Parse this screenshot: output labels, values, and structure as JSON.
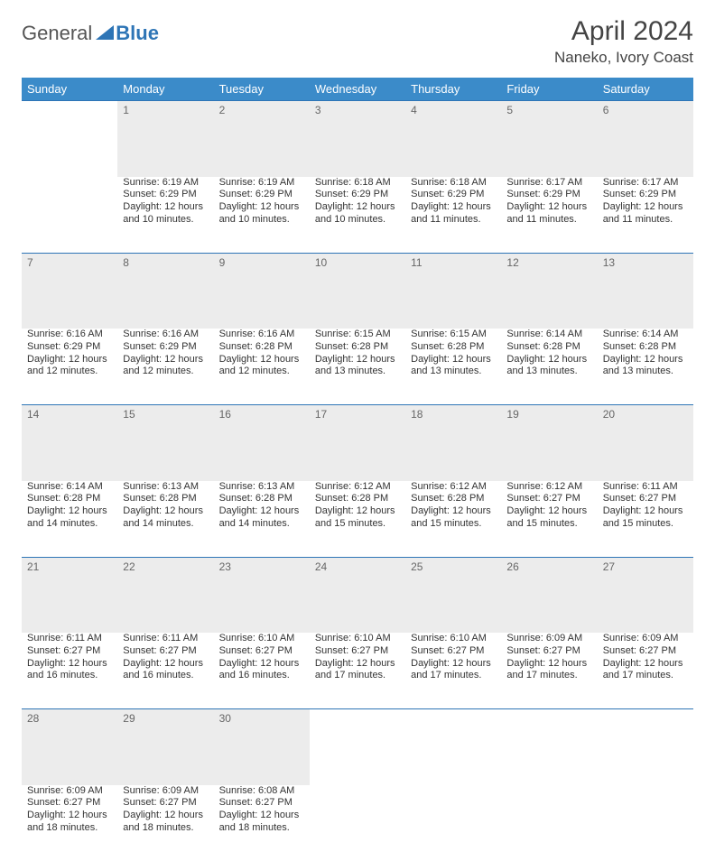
{
  "logo": {
    "word1": "General",
    "word2": "Blue",
    "blue_color": "#2e75b6"
  },
  "title": "April 2024",
  "location": "Naneko, Ivory Coast",
  "colors": {
    "header_bg": "#3b8bc9",
    "daynum_bg": "#ececec",
    "divider": "#2e75b6",
    "text": "#333333",
    "title": "#444444"
  },
  "weekdays": [
    "Sunday",
    "Monday",
    "Tuesday",
    "Wednesday",
    "Thursday",
    "Friday",
    "Saturday"
  ],
  "weeks": [
    {
      "days": [
        {
          "n": "",
          "sunrise": "",
          "sunset": "",
          "day1": "",
          "day2": ""
        },
        {
          "n": "1",
          "sunrise": "Sunrise: 6:19 AM",
          "sunset": "Sunset: 6:29 PM",
          "day1": "Daylight: 12 hours",
          "day2": "and 10 minutes."
        },
        {
          "n": "2",
          "sunrise": "Sunrise: 6:19 AM",
          "sunset": "Sunset: 6:29 PM",
          "day1": "Daylight: 12 hours",
          "day2": "and 10 minutes."
        },
        {
          "n": "3",
          "sunrise": "Sunrise: 6:18 AM",
          "sunset": "Sunset: 6:29 PM",
          "day1": "Daylight: 12 hours",
          "day2": "and 10 minutes."
        },
        {
          "n": "4",
          "sunrise": "Sunrise: 6:18 AM",
          "sunset": "Sunset: 6:29 PM",
          "day1": "Daylight: 12 hours",
          "day2": "and 11 minutes."
        },
        {
          "n": "5",
          "sunrise": "Sunrise: 6:17 AM",
          "sunset": "Sunset: 6:29 PM",
          "day1": "Daylight: 12 hours",
          "day2": "and 11 minutes."
        },
        {
          "n": "6",
          "sunrise": "Sunrise: 6:17 AM",
          "sunset": "Sunset: 6:29 PM",
          "day1": "Daylight: 12 hours",
          "day2": "and 11 minutes."
        }
      ]
    },
    {
      "days": [
        {
          "n": "7",
          "sunrise": "Sunrise: 6:16 AM",
          "sunset": "Sunset: 6:29 PM",
          "day1": "Daylight: 12 hours",
          "day2": "and 12 minutes."
        },
        {
          "n": "8",
          "sunrise": "Sunrise: 6:16 AM",
          "sunset": "Sunset: 6:29 PM",
          "day1": "Daylight: 12 hours",
          "day2": "and 12 minutes."
        },
        {
          "n": "9",
          "sunrise": "Sunrise: 6:16 AM",
          "sunset": "Sunset: 6:28 PM",
          "day1": "Daylight: 12 hours",
          "day2": "and 12 minutes."
        },
        {
          "n": "10",
          "sunrise": "Sunrise: 6:15 AM",
          "sunset": "Sunset: 6:28 PM",
          "day1": "Daylight: 12 hours",
          "day2": "and 13 minutes."
        },
        {
          "n": "11",
          "sunrise": "Sunrise: 6:15 AM",
          "sunset": "Sunset: 6:28 PM",
          "day1": "Daylight: 12 hours",
          "day2": "and 13 minutes."
        },
        {
          "n": "12",
          "sunrise": "Sunrise: 6:14 AM",
          "sunset": "Sunset: 6:28 PM",
          "day1": "Daylight: 12 hours",
          "day2": "and 13 minutes."
        },
        {
          "n": "13",
          "sunrise": "Sunrise: 6:14 AM",
          "sunset": "Sunset: 6:28 PM",
          "day1": "Daylight: 12 hours",
          "day2": "and 13 minutes."
        }
      ]
    },
    {
      "days": [
        {
          "n": "14",
          "sunrise": "Sunrise: 6:14 AM",
          "sunset": "Sunset: 6:28 PM",
          "day1": "Daylight: 12 hours",
          "day2": "and 14 minutes."
        },
        {
          "n": "15",
          "sunrise": "Sunrise: 6:13 AM",
          "sunset": "Sunset: 6:28 PM",
          "day1": "Daylight: 12 hours",
          "day2": "and 14 minutes."
        },
        {
          "n": "16",
          "sunrise": "Sunrise: 6:13 AM",
          "sunset": "Sunset: 6:28 PM",
          "day1": "Daylight: 12 hours",
          "day2": "and 14 minutes."
        },
        {
          "n": "17",
          "sunrise": "Sunrise: 6:12 AM",
          "sunset": "Sunset: 6:28 PM",
          "day1": "Daylight: 12 hours",
          "day2": "and 15 minutes."
        },
        {
          "n": "18",
          "sunrise": "Sunrise: 6:12 AM",
          "sunset": "Sunset: 6:28 PM",
          "day1": "Daylight: 12 hours",
          "day2": "and 15 minutes."
        },
        {
          "n": "19",
          "sunrise": "Sunrise: 6:12 AM",
          "sunset": "Sunset: 6:27 PM",
          "day1": "Daylight: 12 hours",
          "day2": "and 15 minutes."
        },
        {
          "n": "20",
          "sunrise": "Sunrise: 6:11 AM",
          "sunset": "Sunset: 6:27 PM",
          "day1": "Daylight: 12 hours",
          "day2": "and 15 minutes."
        }
      ]
    },
    {
      "days": [
        {
          "n": "21",
          "sunrise": "Sunrise: 6:11 AM",
          "sunset": "Sunset: 6:27 PM",
          "day1": "Daylight: 12 hours",
          "day2": "and 16 minutes."
        },
        {
          "n": "22",
          "sunrise": "Sunrise: 6:11 AM",
          "sunset": "Sunset: 6:27 PM",
          "day1": "Daylight: 12 hours",
          "day2": "and 16 minutes."
        },
        {
          "n": "23",
          "sunrise": "Sunrise: 6:10 AM",
          "sunset": "Sunset: 6:27 PM",
          "day1": "Daylight: 12 hours",
          "day2": "and 16 minutes."
        },
        {
          "n": "24",
          "sunrise": "Sunrise: 6:10 AM",
          "sunset": "Sunset: 6:27 PM",
          "day1": "Daylight: 12 hours",
          "day2": "and 17 minutes."
        },
        {
          "n": "25",
          "sunrise": "Sunrise: 6:10 AM",
          "sunset": "Sunset: 6:27 PM",
          "day1": "Daylight: 12 hours",
          "day2": "and 17 minutes."
        },
        {
          "n": "26",
          "sunrise": "Sunrise: 6:09 AM",
          "sunset": "Sunset: 6:27 PM",
          "day1": "Daylight: 12 hours",
          "day2": "and 17 minutes."
        },
        {
          "n": "27",
          "sunrise": "Sunrise: 6:09 AM",
          "sunset": "Sunset: 6:27 PM",
          "day1": "Daylight: 12 hours",
          "day2": "and 17 minutes."
        }
      ]
    },
    {
      "days": [
        {
          "n": "28",
          "sunrise": "Sunrise: 6:09 AM",
          "sunset": "Sunset: 6:27 PM",
          "day1": "Daylight: 12 hours",
          "day2": "and 18 minutes."
        },
        {
          "n": "29",
          "sunrise": "Sunrise: 6:09 AM",
          "sunset": "Sunset: 6:27 PM",
          "day1": "Daylight: 12 hours",
          "day2": "and 18 minutes."
        },
        {
          "n": "30",
          "sunrise": "Sunrise: 6:08 AM",
          "sunset": "Sunset: 6:27 PM",
          "day1": "Daylight: 12 hours",
          "day2": "and 18 minutes."
        },
        {
          "n": "",
          "sunrise": "",
          "sunset": "",
          "day1": "",
          "day2": ""
        },
        {
          "n": "",
          "sunrise": "",
          "sunset": "",
          "day1": "",
          "day2": ""
        },
        {
          "n": "",
          "sunrise": "",
          "sunset": "",
          "day1": "",
          "day2": ""
        },
        {
          "n": "",
          "sunrise": "",
          "sunset": "",
          "day1": "",
          "day2": ""
        }
      ]
    }
  ]
}
